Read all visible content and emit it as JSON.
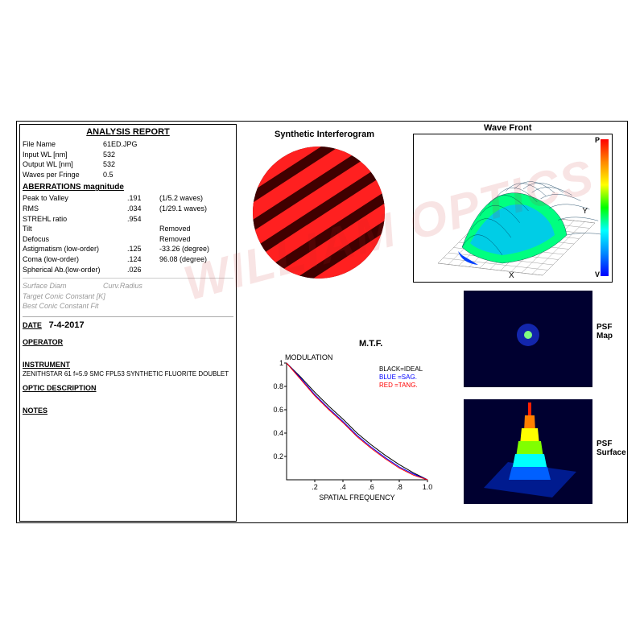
{
  "report": {
    "title": "ANALYSIS  REPORT",
    "file_name_label": "File Name",
    "file_name": "61ED.JPG",
    "input_wl_label": "Input WL [nm]",
    "input_wl": "532",
    "output_wl_label": "Output WL [nm]",
    "output_wl": "532",
    "waves_per_fringe_label": "Waves per Fringe",
    "waves_per_fringe": "0.5"
  },
  "aberrations": {
    "header": "ABERRATIONS magnitude",
    "rows": [
      {
        "label": "Peak to Valley",
        "val": ".191",
        "note": "(1/5.2 waves)"
      },
      {
        "label": "RMS",
        "val": ".034",
        "note": "(1/29.1 waves)"
      },
      {
        "label": "STREHL ratio",
        "val": ".954",
        "note": ""
      },
      {
        "label": "Tilt",
        "val": "",
        "note": "Removed"
      },
      {
        "label": "Defocus",
        "val": "",
        "note": "Removed"
      },
      {
        "label": "Astigmatism  (low-order)",
        "val": ".125",
        "note": "-33.26 (degree)"
      },
      {
        "label": "Coma         (low-order)",
        "val": ".124",
        "note": "96.08 (degree)"
      },
      {
        "label": "Spherical Ab.(low-order)",
        "val": ".026",
        "note": ""
      }
    ]
  },
  "surface": {
    "diam_label": "Surface Diam",
    "curv_label": "Curv.Radius",
    "target_conic": "Target Conic Constant [K]",
    "best_conic": "Best Conic Constant Fit"
  },
  "meta": {
    "date_label": "DATE",
    "date": "7-4-2017",
    "operator_label": "OPERATOR",
    "instrument_label": "INSTRUMENT",
    "instrument": "ZENITHSTAR 61 f=5.9 SMC FPL53 SYNTHETIC FLUORITE DOUBLET",
    "optic_desc_label": "OPTIC DESCRIPTION",
    "notes_label": "NOTES"
  },
  "interferogram": {
    "title": "Synthetic Interferogram",
    "background": "#200000",
    "fringe_color_bright": "#ff2020",
    "fringe_color_dark": "#400000",
    "fringe_count": 5,
    "angle_deg": -33
  },
  "wavefront": {
    "title": "Wave Front",
    "axis_labels": {
      "x": "X",
      "y": "Y",
      "p": "P",
      "v": "V"
    },
    "colorbar": [
      "#ff0000",
      "#ff8800",
      "#ffff00",
      "#00ff00",
      "#00ffff",
      "#0088ff",
      "#0000ff"
    ],
    "grid_color": "#888888",
    "surface_colors": [
      "#0040ff",
      "#00c0ff",
      "#00ff80",
      "#80ff00",
      "#ffff00",
      "#ff8000"
    ]
  },
  "mtf": {
    "title": "M.T.F.",
    "ylabel": "MODULATION",
    "xlabel": "SPATIAL FREQUENCY",
    "legend": {
      "black": "BLACK=IDEAL",
      "blue": "BLUE  =SAG.",
      "red": "RED   =TANG."
    },
    "xlim": [
      0,
      1.0
    ],
    "ylim": [
      0,
      1.0
    ],
    "xticks": [
      ".2",
      ".4",
      ".6",
      ".8",
      "1.0"
    ],
    "yticks": [
      "1",
      "0.8",
      "0.6",
      "0.4",
      "0.2"
    ],
    "curves": {
      "ideal": {
        "color": "#000000",
        "points": [
          [
            0,
            1
          ],
          [
            0.1,
            0.88
          ],
          [
            0.2,
            0.75
          ],
          [
            0.3,
            0.63
          ],
          [
            0.4,
            0.52
          ],
          [
            0.5,
            0.4
          ],
          [
            0.6,
            0.3
          ],
          [
            0.7,
            0.21
          ],
          [
            0.8,
            0.13
          ],
          [
            0.9,
            0.06
          ],
          [
            1.0,
            0.0
          ]
        ]
      },
      "sag": {
        "color": "#0000ff",
        "points": [
          [
            0,
            1
          ],
          [
            0.1,
            0.87
          ],
          [
            0.2,
            0.73
          ],
          [
            0.3,
            0.61
          ],
          [
            0.4,
            0.5
          ],
          [
            0.5,
            0.38
          ],
          [
            0.6,
            0.28
          ],
          [
            0.7,
            0.19
          ],
          [
            0.8,
            0.11
          ],
          [
            0.9,
            0.05
          ],
          [
            1.0,
            0.0
          ]
        ]
      },
      "tang": {
        "color": "#ff0000",
        "points": [
          [
            0,
            1
          ],
          [
            0.1,
            0.86
          ],
          [
            0.2,
            0.72
          ],
          [
            0.3,
            0.6
          ],
          [
            0.4,
            0.49
          ],
          [
            0.5,
            0.37
          ],
          [
            0.6,
            0.27
          ],
          [
            0.7,
            0.18
          ],
          [
            0.8,
            0.1
          ],
          [
            0.9,
            0.04
          ],
          [
            1.0,
            0.0
          ]
        ]
      }
    }
  },
  "psf_map": {
    "label": "PSF\nMap",
    "bg": "#000030",
    "center_color": "#80ff80",
    "halo_color": "#2040ff"
  },
  "psf_surface": {
    "label": "PSF\nSurface",
    "bg": "#000030",
    "base_color": "#0020a0",
    "peak_colors": [
      "#0060ff",
      "#00ffff",
      "#80ff00",
      "#ffff00",
      "#ff8000",
      "#ff2000"
    ]
  },
  "watermark": "WILLIAM OPTICS"
}
